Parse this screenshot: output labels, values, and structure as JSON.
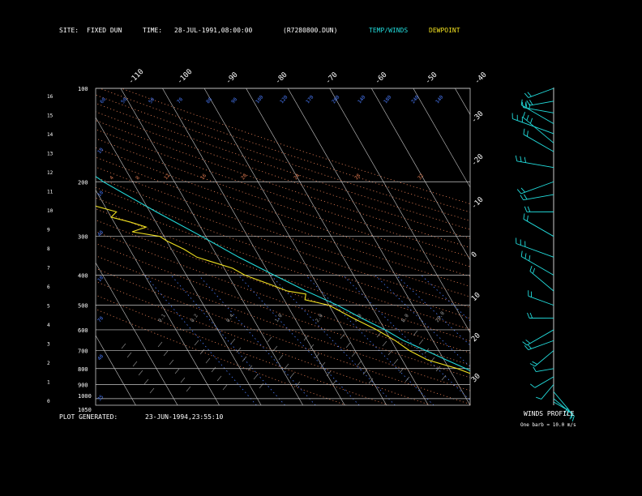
{
  "header": {
    "site_label": "SITE:",
    "site_value": "FIXED DUN",
    "time_label": "TIME:",
    "time_value": "28-JUL-1991,08:00:00",
    "file_id": "(R7280800.DUN)",
    "legend_temp": "TEMP/WINDS",
    "legend_dewpoint": "DEWPOINT"
  },
  "footer": {
    "generated_label": "PLOT GENERATED:",
    "generated_value": "23-JUN-1994,23:55:10"
  },
  "wind_panel": {
    "title": "WINDS PROFILE",
    "legend": "One barb = 10.0 m/s"
  },
  "colors": {
    "background": "#000000",
    "grid": "#c8c8c8",
    "temperature": "#22dddd",
    "dewpoint": "#f0e020",
    "mixing_ratio": "#4a7cff",
    "dry_adiabat": "#e07a50",
    "moist_adiabat": "#909090",
    "header_temp": "#22dddd",
    "header_dewpoint": "#f0e020",
    "text": "#ffffff"
  },
  "chart_data": {
    "type": "line",
    "ylabel": "",
    "xlabel": "",
    "y_scale": "log-pressure",
    "pressure_levels": [
      100,
      200,
      300,
      400,
      500,
      600,
      700,
      800,
      900,
      1000,
      1050
    ],
    "height_km_ticks": [
      0,
      1,
      2,
      3,
      4,
      5,
      6,
      7,
      8,
      9,
      10,
      11,
      12,
      13,
      14,
      15,
      16
    ],
    "temperature_ticks_top": [
      "-110",
      "-100",
      "-90",
      "-80",
      "-70",
      "-60",
      "-50",
      "-40"
    ],
    "temperature_ticks_right": [
      "-30",
      "-20",
      "-10",
      "0",
      "10",
      "20",
      "30"
    ],
    "mixing_ratio_labels_a": [
      "10",
      "20",
      "30",
      "40",
      "50",
      "70",
      "100",
      "140",
      "180",
      "240"
    ],
    "mixing_ratio_labels_b": [
      "0.1",
      "0.2",
      "0.4",
      "1.0",
      "2.0",
      "4.0",
      "8.0",
      "20.0"
    ],
    "upper_labels": [
      "60",
      "50",
      "70",
      "80",
      "90",
      "100",
      "120",
      "170",
      "200"
    ],
    "side_labels": [
      "10",
      "20",
      "30",
      "40",
      "50",
      "60"
    ],
    "dry_adiabat_labels": [
      "4",
      "8",
      "12",
      "16",
      "20",
      "24",
      "28",
      "32"
    ],
    "series": [
      {
        "key": "temperature",
        "points": [
          [
            1025,
            29
          ],
          [
            1000,
            26
          ],
          [
            950,
            24
          ],
          [
            900,
            21
          ],
          [
            850,
            17
          ],
          [
            800,
            14
          ],
          [
            750,
            10.5
          ],
          [
            700,
            7
          ],
          [
            650,
            3
          ],
          [
            600,
            0
          ],
          [
            550,
            -4
          ],
          [
            500,
            -8
          ],
          [
            450,
            -13.5
          ],
          [
            400,
            -19
          ],
          [
            350,
            -25
          ],
          [
            300,
            -31
          ],
          [
            250,
            -38.5
          ],
          [
            200,
            -47
          ],
          [
            180,
            -50
          ],
          [
            160,
            -55
          ],
          [
            150,
            -59
          ],
          [
            140,
            -63
          ],
          [
            135,
            -66
          ],
          [
            130,
            -68
          ],
          [
            120,
            -68
          ],
          [
            110,
            -65
          ],
          [
            100,
            -62
          ]
        ]
      },
      {
        "key": "dewpoint",
        "points": [
          [
            1025,
            25
          ],
          [
            1000,
            23
          ],
          [
            950,
            20
          ],
          [
            900,
            18
          ],
          [
            850,
            16
          ],
          [
            800,
            12
          ],
          [
            750,
            6
          ],
          [
            700,
            3
          ],
          [
            650,
            1
          ],
          [
            600,
            -2
          ],
          [
            550,
            -6
          ],
          [
            500,
            -10
          ],
          [
            480,
            -15
          ],
          [
            460,
            -14
          ],
          [
            450,
            -18
          ],
          [
            430,
            -21
          ],
          [
            400,
            -26
          ],
          [
            380,
            -28
          ],
          [
            350,
            -35
          ],
          [
            330,
            -37
          ],
          [
            310,
            -40
          ],
          [
            300,
            -41
          ],
          [
            290,
            -47
          ],
          [
            280,
            -43
          ],
          [
            270,
            -46
          ],
          [
            260,
            -50
          ],
          [
            250,
            -48
          ],
          [
            240,
            -52
          ],
          [
            230,
            -55
          ],
          [
            220,
            -57
          ],
          [
            210,
            -58
          ],
          [
            200,
            -60
          ]
        ]
      }
    ],
    "winds": [
      {
        "p": 1025,
        "dir": 120,
        "spd": 8
      },
      {
        "p": 1000,
        "dir": 130,
        "spd": 12
      },
      {
        "p": 950,
        "dir": 140,
        "spd": 10
      },
      {
        "p": 900,
        "dir": 220,
        "spd": 6
      },
      {
        "p": 850,
        "dir": 240,
        "spd": 8
      },
      {
        "p": 800,
        "dir": 260,
        "spd": 5
      },
      {
        "p": 700,
        "dir": 230,
        "spd": 10
      },
      {
        "p": 650,
        "dir": 250,
        "spd": 12
      },
      {
        "p": 600,
        "dir": 240,
        "spd": 15
      },
      {
        "p": 550,
        "dir": 270,
        "spd": 10
      },
      {
        "p": 500,
        "dir": 290,
        "spd": 12
      },
      {
        "p": 450,
        "dir": 310,
        "spd": 15
      },
      {
        "p": 400,
        "dir": 300,
        "spd": 20
      },
      {
        "p": 350,
        "dir": 290,
        "spd": 22
      },
      {
        "p": 300,
        "dir": 300,
        "spd": 18
      },
      {
        "p": 250,
        "dir": 270,
        "spd": 12
      },
      {
        "p": 220,
        "dir": 260,
        "spd": 15
      },
      {
        "p": 200,
        "dir": 250,
        "spd": 18
      },
      {
        "p": 180,
        "dir": 280,
        "spd": 20
      },
      {
        "p": 160,
        "dir": 300,
        "spd": 18
      },
      {
        "p": 150,
        "dir": 310,
        "spd": 22
      },
      {
        "p": 140,
        "dir": 290,
        "spd": 25
      },
      {
        "p": 130,
        "dir": 300,
        "spd": 20
      },
      {
        "p": 120,
        "dir": 280,
        "spd": 15
      },
      {
        "p": 110,
        "dir": 260,
        "spd": 10
      },
      {
        "p": 100,
        "dir": 250,
        "spd": 12
      }
    ]
  }
}
